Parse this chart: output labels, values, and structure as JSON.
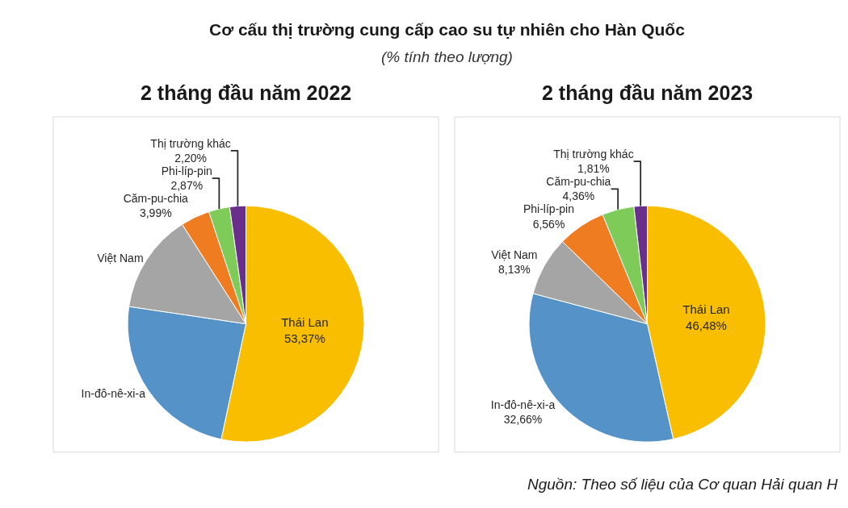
{
  "chart_data": [
    {
      "type": "other",
      "title": "Cơ cấu thị trường cung cấp cao su tự nhiên cho Hàn Quốc",
      "subtitle": "(% tính theo lượng)"
    },
    {
      "type": "pie",
      "title": "2 tháng đầu năm 2022",
      "categories": [
        "Thái Lan",
        "In-đô-nê-xi-a",
        "Việt Nam",
        "Căm-pu-chia",
        "Phi-líp-pin",
        "Thị trường khác"
      ],
      "values": [
        53.37,
        24.0,
        13.6,
        3.99,
        2.87,
        2.2
      ],
      "colors": [
        "#f9be00",
        "#5592c8",
        "#a5a5a5",
        "#f07c22",
        "#7ecb5a",
        "#6a2f8a"
      ],
      "value_labels": [
        "53,37%",
        null,
        null,
        "3,99%",
        "2,87%",
        "2,20%"
      ]
    },
    {
      "type": "pie",
      "title": "2 tháng đầu năm 2023",
      "categories": [
        "Thái Lan",
        "In-đô-nê-xi-a",
        "Việt Nam",
        "Phi-líp-pin",
        "Căm-pu-chia",
        "Thị trường khác"
      ],
      "values": [
        46.48,
        32.66,
        8.13,
        6.56,
        4.36,
        1.81
      ],
      "colors": [
        "#f9be00",
        "#5592c8",
        "#a5a5a5",
        "#f07c22",
        "#7ecb5a",
        "#6a2f8a"
      ],
      "value_labels": [
        "46,48%",
        "32,66%",
        "8,13%",
        "6,56%",
        "4,36%",
        "1,81%"
      ],
      "annotations": [
        "Nguồn: Theo số liệu của Cơ quan Hải quan H"
      ]
    }
  ]
}
